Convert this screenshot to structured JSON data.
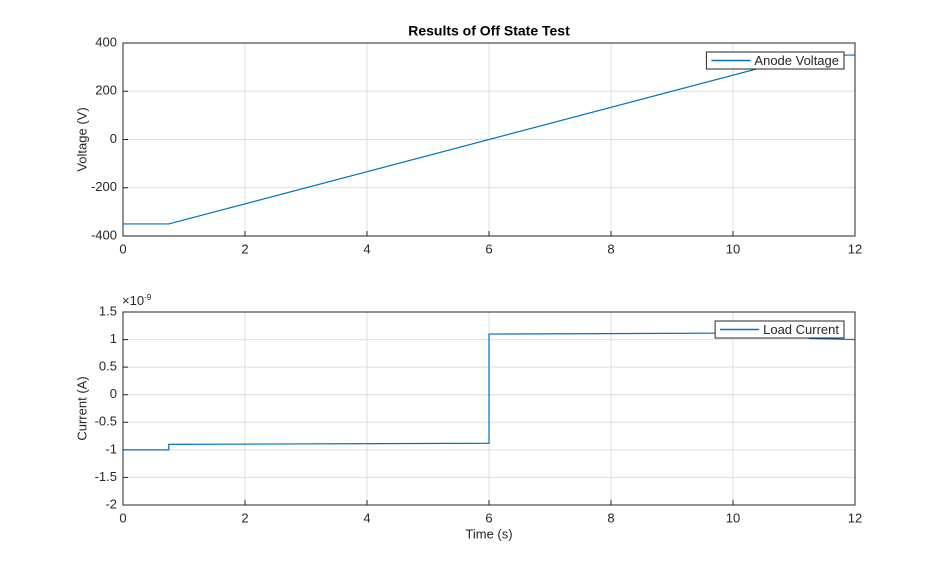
{
  "chart_data": [
    {
      "type": "line",
      "title": "Results of Off State Test",
      "ylabel": "Voltage (V)",
      "x": [
        0,
        0.75,
        11.25,
        12
      ],
      "series": [
        {
          "name": "Anode Voltage",
          "color": "#0072bd",
          "values": [
            -350,
            -350,
            350,
            350
          ]
        }
      ],
      "xlim": [
        0,
        12
      ],
      "ylim": [
        -400,
        400
      ],
      "xticks": [
        0,
        2,
        4,
        6,
        8,
        10,
        12
      ],
      "yticks": [
        -400,
        -200,
        0,
        200,
        400
      ],
      "grid": true,
      "legend": "upper-right"
    },
    {
      "type": "line",
      "ylabel": "Current (A)",
      "xlabel": "Time (s)",
      "exponent_base": "×10",
      "exponent": "-9",
      "x": [
        0,
        0.75,
        0.75,
        6,
        6,
        10.5,
        11.25,
        11.25,
        12
      ],
      "series": [
        {
          "name": "Load Current",
          "color": "#0072bd",
          "values": [
            -1,
            -1,
            -0.9,
            -0.88,
            1.1,
            1.12,
            1.13,
            1.02,
            1.0
          ]
        }
      ],
      "xlim": [
        0,
        12
      ],
      "ylim": [
        -2,
        1.5
      ],
      "xticks": [
        0,
        2,
        4,
        6,
        8,
        10,
        12
      ],
      "yticks": [
        -2,
        -1.5,
        -1,
        -0.5,
        0,
        0.5,
        1,
        1.5
      ],
      "grid": true,
      "legend": "upper-right"
    }
  ]
}
